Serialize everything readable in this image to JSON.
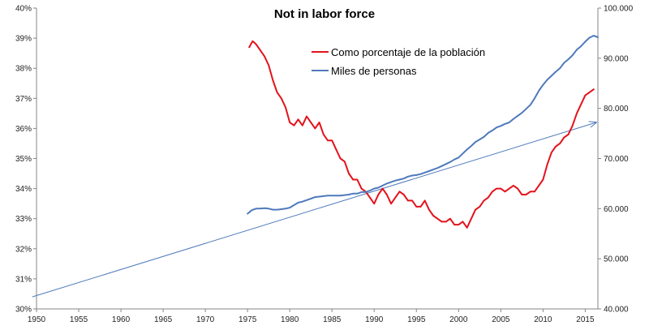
{
  "chart_data": {
    "type": "line",
    "title": "Not in labor force",
    "x_axis": {
      "range": [
        1950,
        2016.5
      ],
      "ticks": [
        1950,
        1955,
        1960,
        1965,
        1970,
        1975,
        1980,
        1985,
        1990,
        1995,
        2000,
        2005,
        2010,
        2015
      ]
    },
    "y_left": {
      "range": [
        30,
        40
      ],
      "ticks": [
        30,
        31,
        32,
        33,
        34,
        35,
        36,
        37,
        38,
        39,
        40
      ],
      "tick_labels": [
        "30%",
        "31%",
        "32%",
        "33%",
        "34%",
        "35%",
        "36%",
        "37%",
        "38%",
        "39%",
        "40%"
      ]
    },
    "y_right": {
      "range": [
        40000,
        100000
      ],
      "ticks": [
        40000,
        50000,
        60000,
        70000,
        80000,
        90000,
        100000
      ],
      "tick_labels": [
        "40.000",
        "50.000",
        "60.000",
        "70.000",
        "80.000",
        "90.000",
        "100.000"
      ]
    },
    "grid": false,
    "legend": {
      "position": "top-center"
    },
    "series": [
      {
        "name": "Como porcentaje de la población",
        "axis": "left",
        "color": "#e3121b",
        "x": [
          1975.2,
          1975.6,
          1976.0,
          1976.5,
          1977.0,
          1977.5,
          1978.0,
          1978.5,
          1979.0,
          1979.5,
          1980.0,
          1980.5,
          1981.0,
          1981.5,
          1982.0,
          1982.5,
          1983.0,
          1983.5,
          1984.0,
          1984.5,
          1985.0,
          1985.5,
          1986.0,
          1986.5,
          1987.0,
          1987.5,
          1988.0,
          1988.5,
          1989.0,
          1989.5,
          1990.0,
          1990.5,
          1991.0,
          1991.5,
          1992.0,
          1992.5,
          1993.0,
          1993.5,
          1994.0,
          1994.5,
          1995.0,
          1995.5,
          1996.0,
          1996.5,
          1997.0,
          1997.5,
          1998.0,
          1998.5,
          1999.0,
          1999.5,
          2000.0,
          2000.5,
          2001.0,
          2001.5,
          2002.0,
          2002.5,
          2003.0,
          2003.5,
          2004.0,
          2004.5,
          2005.0,
          2005.5,
          2006.0,
          2006.5,
          2007.0,
          2007.5,
          2008.0,
          2008.5,
          2009.0,
          2009.5,
          2010.0,
          2010.5,
          2011.0,
          2011.5,
          2012.0,
          2012.5,
          2013.0,
          2013.5,
          2014.0,
          2014.5,
          2015.0,
          2015.5,
          2016.0
        ],
        "y": [
          38.7,
          38.9,
          38.8,
          38.6,
          38.4,
          38.1,
          37.6,
          37.2,
          37.0,
          36.7,
          36.2,
          36.1,
          36.3,
          36.1,
          36.4,
          36.2,
          36.0,
          36.2,
          35.8,
          35.6,
          35.6,
          35.3,
          35.0,
          34.9,
          34.5,
          34.3,
          34.3,
          34.0,
          33.9,
          33.7,
          33.5,
          33.8,
          34.0,
          33.8,
          33.5,
          33.7,
          33.9,
          33.8,
          33.6,
          33.6,
          33.4,
          33.4,
          33.6,
          33.3,
          33.1,
          33.0,
          32.9,
          32.9,
          33.0,
          32.8,
          32.8,
          32.9,
          32.7,
          33.0,
          33.3,
          33.4,
          33.6,
          33.7,
          33.9,
          34.0,
          34.0,
          33.9,
          34.0,
          34.1,
          34.0,
          33.8,
          33.8,
          33.9,
          33.9,
          34.1,
          34.3,
          34.8,
          35.2,
          35.4,
          35.5,
          35.7,
          35.8,
          36.1,
          36.5,
          36.8,
          37.1,
          37.2,
          37.3
        ]
      },
      {
        "name": "Miles de personas",
        "axis": "right",
        "color": "#4f7abb",
        "x": [
          1975.0,
          1975.5,
          1976.0,
          1976.5,
          1977.0,
          1977.5,
          1978.0,
          1978.5,
          1979.0,
          1979.5,
          1980.0,
          1980.5,
          1981.0,
          1981.5,
          1982.0,
          1982.5,
          1983.0,
          1983.5,
          1984.0,
          1984.5,
          1985.0,
          1985.5,
          1986.0,
          1986.5,
          1987.0,
          1987.5,
          1988.0,
          1988.5,
          1989.0,
          1989.5,
          1990.0,
          1990.5,
          1991.0,
          1991.5,
          1992.0,
          1992.5,
          1993.0,
          1993.5,
          1994.0,
          1994.5,
          1995.0,
          1995.5,
          1996.0,
          1996.5,
          1997.0,
          1997.5,
          1998.0,
          1998.5,
          1999.0,
          1999.5,
          2000.0,
          2000.5,
          2001.0,
          2001.5,
          2002.0,
          2002.5,
          2003.0,
          2003.5,
          2004.0,
          2004.5,
          2005.0,
          2005.5,
          2006.0,
          2006.5,
          2007.0,
          2007.5,
          2008.0,
          2008.5,
          2009.0,
          2009.5,
          2010.0,
          2010.5,
          2011.0,
          2011.5,
          2012.0,
          2012.5,
          2013.0,
          2013.5,
          2014.0,
          2014.5,
          2015.0,
          2015.5,
          2016.0,
          2016.5
        ],
        "y": [
          59000,
          59700,
          60000,
          60000,
          60100,
          60000,
          59800,
          59800,
          59900,
          60000,
          60200,
          60700,
          61200,
          61400,
          61700,
          62000,
          62300,
          62400,
          62500,
          62600,
          62600,
          62600,
          62600,
          62700,
          62800,
          63000,
          63000,
          63300,
          63300,
          63600,
          64000,
          64200,
          64600,
          65000,
          65300,
          65600,
          65800,
          66000,
          66400,
          66600,
          66700,
          66900,
          67200,
          67500,
          67800,
          68100,
          68500,
          68900,
          69300,
          69800,
          70200,
          71000,
          71800,
          72500,
          73300,
          73800,
          74300,
          75100,
          75600,
          76200,
          76500,
          76900,
          77200,
          77900,
          78500,
          79100,
          79900,
          80700,
          82000,
          83500,
          84700,
          85700,
          86500,
          87300,
          88000,
          89100,
          89800,
          90600,
          91700,
          92400,
          93300,
          94100,
          94500,
          94200
        ]
      }
    ],
    "trendline": {
      "axis": "left",
      "color": "#4f7abb",
      "x": [
        1949.5,
        2016.3
      ],
      "y": [
        30.4,
        36.2
      ]
    }
  }
}
